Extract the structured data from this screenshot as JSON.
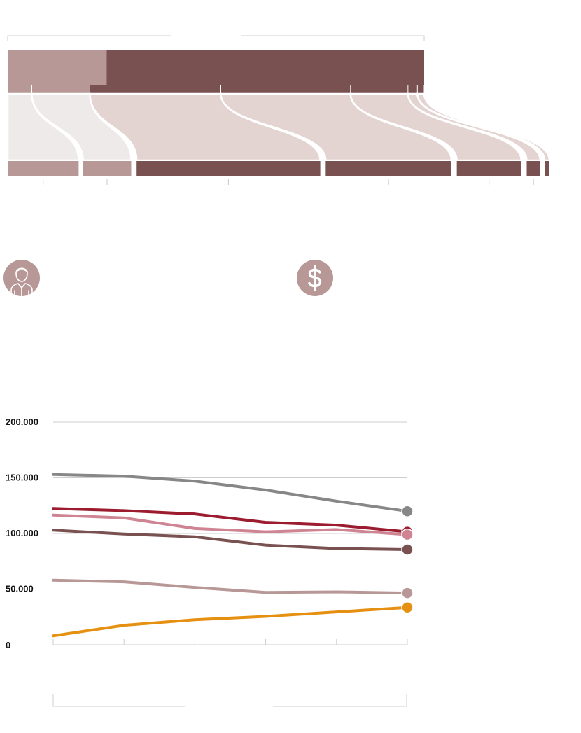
{
  "colors": {
    "dark_brown": "#785150",
    "light_brown": "#b89896",
    "pale_pink": "#e3d3d1",
    "paler": "#efeaea",
    "grid": "#cccccc"
  },
  "icons": {
    "person": "person-icon",
    "dollar": "dollar-icon"
  },
  "chart_data": [
    {
      "type": "flow",
      "bands": [
        {
          "start": 0.0,
          "end": 0.058,
          "to_start": 0.0,
          "to_end": 0.131,
          "shade": "paler"
        },
        {
          "start": 0.058,
          "end": 0.1975,
          "to_start": 0.139,
          "to_end": 0.228,
          "shade": "paler"
        },
        {
          "start": 0.1975,
          "end": 0.5117,
          "to_start": 0.238,
          "to_end": 0.577,
          "shade": "pale_pink"
        },
        {
          "start": 0.5117,
          "end": 0.8232,
          "to_start": 0.587,
          "to_end": 0.819,
          "shade": "pale_pink"
        },
        {
          "start": 0.8232,
          "end": 0.9611,
          "to_start": 0.829,
          "to_end": 0.948,
          "shade": "pale_pink"
        },
        {
          "start": 0.9611,
          "end": 0.9837,
          "to_start": 0.958,
          "to_end": 0.983,
          "shade": "pale_pink"
        },
        {
          "start": 0.9837,
          "end": 1.0,
          "to_start": 0.991,
          "to_end": 1.0,
          "shade": "pale_pink"
        }
      ],
      "top_split": [
        0.2375,
        0.7625
      ],
      "bottom_shades": [
        "light_brown",
        "light_brown",
        "dark_brown",
        "dark_brown",
        "dark_brown",
        "dark_brown",
        "dark_brown"
      ]
    },
    {
      "type": "line",
      "x": [
        0,
        1,
        2,
        3,
        4,
        5
      ],
      "yticks": [
        "200.000",
        "150.000",
        "100.000",
        "50.000",
        "0"
      ],
      "ylim": [
        0,
        200000
      ],
      "grid": true,
      "series": [
        {
          "color": "#878787",
          "values": [
            153000,
            151500,
            147000,
            139000,
            129000,
            120000
          ]
        },
        {
          "color": "#9b1c2e",
          "values": [
            122500,
            120500,
            117500,
            110000,
            107500,
            101500
          ]
        },
        {
          "color": "#cf8493",
          "values": [
            116500,
            114000,
            104500,
            101500,
            103500,
            99000
          ]
        },
        {
          "color": "#785150",
          "values": [
            103000,
            99500,
            97000,
            89500,
            86500,
            85500
          ]
        },
        {
          "color": "#b89896",
          "values": [
            58000,
            56500,
            51500,
            47000,
            47500,
            46500
          ]
        },
        {
          "color": "#e69012",
          "values": [
            8000,
            17500,
            22500,
            25500,
            29500,
            33500
          ]
        }
      ]
    }
  ]
}
